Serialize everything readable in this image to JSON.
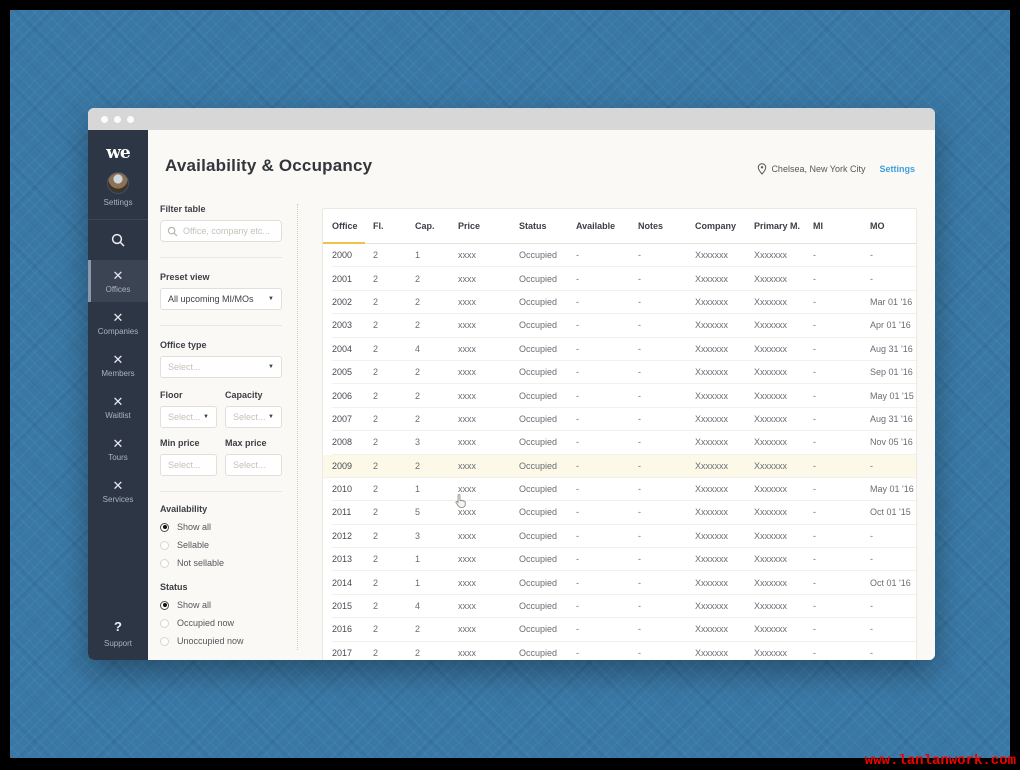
{
  "watermark": "www.lanlanwork.com",
  "sidebar": {
    "logo": "we",
    "user": {
      "label": "Settings"
    },
    "items": [
      {
        "label": "Offices",
        "active": true
      },
      {
        "label": "Companies",
        "active": false
      },
      {
        "label": "Members",
        "active": false
      },
      {
        "label": "Waitlist",
        "active": false
      },
      {
        "label": "Tours",
        "active": false
      },
      {
        "label": "Services",
        "active": false
      }
    ],
    "support": {
      "icon": "?",
      "label": "Support"
    }
  },
  "header": {
    "title": "Availability & Occupancy",
    "location": "Chelsea, New York City",
    "settings_link": "Settings"
  },
  "filters": {
    "filter_table": {
      "label": "Filter table",
      "placeholder": "Office, company etc..."
    },
    "preset_view": {
      "label": "Preset view",
      "value": "All upcoming MI/MOs"
    },
    "office_type": {
      "label": "Office type",
      "placeholder": "Select..."
    },
    "floor": {
      "label": "Floor",
      "placeholder": "Select..."
    },
    "capacity": {
      "label": "Capacity",
      "placeholder": "Select..."
    },
    "min_price": {
      "label": "Min price",
      "placeholder": "Select..."
    },
    "max_price": {
      "label": "Max price",
      "placeholder": "Select..."
    },
    "availability": {
      "label": "Availability",
      "options": [
        {
          "label": "Show all",
          "selected": true
        },
        {
          "label": "Sellable",
          "selected": false
        },
        {
          "label": "Not sellable",
          "selected": false
        }
      ]
    },
    "status": {
      "label": "Status",
      "options": [
        {
          "label": "Show all",
          "selected": true
        },
        {
          "label": "Occupied now",
          "selected": false
        },
        {
          "label": "Unoccupied now",
          "selected": false
        }
      ]
    }
  },
  "table": {
    "columns": [
      "Office",
      "Fl.",
      "Cap.",
      "Price",
      "Status",
      "Available",
      "Notes",
      "Company",
      "Primary M.",
      "MI",
      "MO"
    ],
    "sorted_column": "Office",
    "highlight_index": 9,
    "rows": [
      [
        "2000",
        "2",
        "1",
        "xxxx",
        "Occupied",
        "-",
        "-",
        "Xxxxxxx",
        "Xxxxxxx",
        "-",
        "-"
      ],
      [
        "2001",
        "2",
        "2",
        "xxxx",
        "Occupied",
        "-",
        "-",
        "Xxxxxxx",
        "Xxxxxxx",
        "-",
        "-"
      ],
      [
        "2002",
        "2",
        "2",
        "xxxx",
        "Occupied",
        "-",
        "-",
        "Xxxxxxx",
        "Xxxxxxx",
        "-",
        "Mar 01 '16"
      ],
      [
        "2003",
        "2",
        "2",
        "xxxx",
        "Occupied",
        "-",
        "-",
        "Xxxxxxx",
        "Xxxxxxx",
        "-",
        "Apr 01 '16"
      ],
      [
        "2004",
        "2",
        "4",
        "xxxx",
        "Occupied",
        "-",
        "-",
        "Xxxxxxx",
        "Xxxxxxx",
        "-",
        "Aug 31 '16"
      ],
      [
        "2005",
        "2",
        "2",
        "xxxx",
        "Occupied",
        "-",
        "-",
        "Xxxxxxx",
        "Xxxxxxx",
        "-",
        "Sep 01 '16"
      ],
      [
        "2006",
        "2",
        "2",
        "xxxx",
        "Occupied",
        "-",
        "-",
        "Xxxxxxx",
        "Xxxxxxx",
        "-",
        "May 01 '15"
      ],
      [
        "2007",
        "2",
        "2",
        "xxxx",
        "Occupied",
        "-",
        "-",
        "Xxxxxxx",
        "Xxxxxxx",
        "-",
        "Aug 31 '16"
      ],
      [
        "2008",
        "2",
        "3",
        "xxxx",
        "Occupied",
        "-",
        "-",
        "Xxxxxxx",
        "Xxxxxxx",
        "-",
        "Nov 05 '16"
      ],
      [
        "2009",
        "2",
        "2",
        "xxxx",
        "Occupied",
        "-",
        "-",
        "Xxxxxxx",
        "Xxxxxxx",
        "-",
        "-"
      ],
      [
        "2010",
        "2",
        "1",
        "xxxx",
        "Occupied",
        "-",
        "-",
        "Xxxxxxx",
        "Xxxxxxx",
        "-",
        "May 01 '16"
      ],
      [
        "2011",
        "2",
        "5",
        "xxxx",
        "Occupied",
        "-",
        "-",
        "Xxxxxxx",
        "Xxxxxxx",
        "-",
        "Oct 01 '15"
      ],
      [
        "2012",
        "2",
        "3",
        "xxxx",
        "Occupied",
        "-",
        "-",
        "Xxxxxxx",
        "Xxxxxxx",
        "-",
        "-"
      ],
      [
        "2013",
        "2",
        "1",
        "xxxx",
        "Occupied",
        "-",
        "-",
        "Xxxxxxx",
        "Xxxxxxx",
        "-",
        "-"
      ],
      [
        "2014",
        "2",
        "1",
        "xxxx",
        "Occupied",
        "-",
        "-",
        "Xxxxxxx",
        "Xxxxxxx",
        "-",
        "Oct 01 '16"
      ],
      [
        "2015",
        "2",
        "4",
        "xxxx",
        "Occupied",
        "-",
        "-",
        "Xxxxxxx",
        "Xxxxxxx",
        "-",
        "-"
      ],
      [
        "2016",
        "2",
        "2",
        "xxxx",
        "Occupied",
        "-",
        "-",
        "Xxxxxxx",
        "Xxxxxxx",
        "-",
        "-"
      ],
      [
        "2017",
        "2",
        "2",
        "xxxx",
        "Occupied",
        "-",
        "-",
        "Xxxxxxx",
        "Xxxxxxx",
        "-",
        "-"
      ]
    ]
  },
  "colors": {
    "backdrop_blue": "#3978a6",
    "sidebar_navy": "#2d3644",
    "accent_yellow": "#f2c14b",
    "link_blue": "#419fdb",
    "highlight_row": "#fcf9e8",
    "main_cream": "#faf9f5"
  }
}
